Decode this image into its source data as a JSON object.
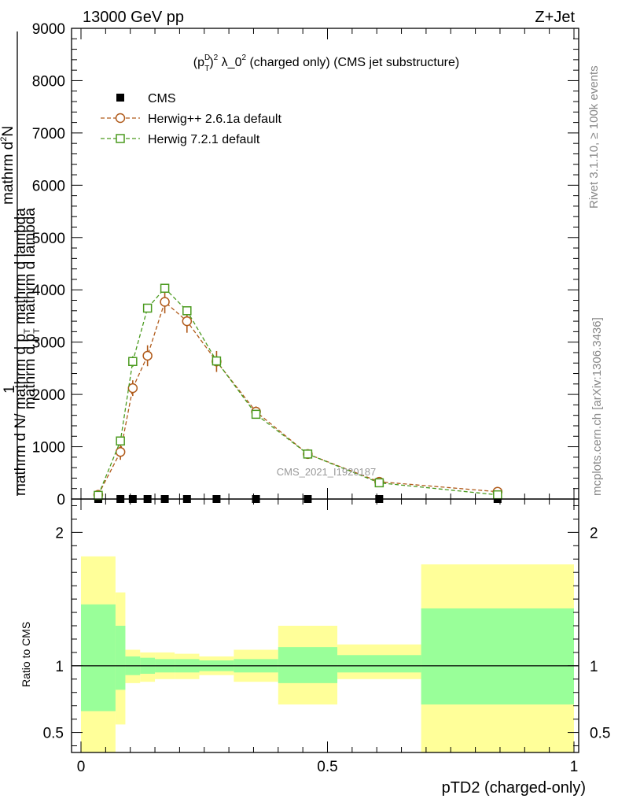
{
  "header": {
    "left": "13000 GeV pp",
    "right": "Z+Jet"
  },
  "side_text": {
    "rivet": "Rivet 3.1.10, ≥ 100k events",
    "mcplots": "mcplots.cern.ch [arXiv:1306.3436]"
  },
  "watermark": "CMS_2021_I1920187",
  "chart_data": [
    {
      "type": "line",
      "title_parts": {
        "base": "(p",
        "sup_D": "D",
        "sub_T": "T",
        "close": ")",
        "sup_2": "2",
        "rest": " λ_0",
        "rest_sup": "2",
        "tail": " (charged only) (CMS jet substructure)"
      },
      "ylabel": {
        "num_a": "1",
        "num_b": "mathrm d N",
        "num_c": "/ mathrm d p",
        "num_sub": "T",
        "num_d": " mathrm d lambda",
        "den_a": "mathrm d",
        "den_sup": "2",
        "den_b": "N",
        "den_c": "mathrm d p",
        "den_sub": "T",
        "den_d": " mathrm d lambda"
      },
      "xlim": [
        0,
        1
      ],
      "ylim": [
        0,
        9000
      ],
      "yticks": [
        0,
        1000,
        2000,
        3000,
        4000,
        5000,
        6000,
        7000,
        8000,
        9000
      ],
      "ytick_labels": [
        "0",
        "1000",
        "2000",
        "3000",
        "4000",
        "5000",
        "6000",
        "7000",
        "8000",
        "9000"
      ],
      "legend": [
        {
          "name": "CMS",
          "marker": "filled-square",
          "color": "#000000"
        },
        {
          "name": "Herwig++ 2.6.1a default",
          "marker": "open-circle",
          "color": "#b05a1a"
        },
        {
          "name": "Herwig 7.2.1 default",
          "marker": "open-square",
          "color": "#4a9a1e"
        }
      ],
      "series": [
        {
          "name": "CMS",
          "x": [
            0.035,
            0.08,
            0.105,
            0.135,
            0.17,
            0.215,
            0.275,
            0.355,
            0.46,
            0.605,
            0.845
          ],
          "y": [
            0,
            0,
            0,
            0,
            0,
            0,
            0,
            0,
            0,
            0,
            0
          ]
        },
        {
          "name": "Herwig++ 2.6.1a default",
          "x": [
            0.035,
            0.08,
            0.105,
            0.135,
            0.17,
            0.215,
            0.275,
            0.355,
            0.46,
            0.605,
            0.845
          ],
          "y": [
            80,
            900,
            2120,
            2740,
            3770,
            3400,
            2630,
            1670,
            860,
            330,
            140
          ],
          "yerr": [
            30,
            150,
            150,
            200,
            220,
            220,
            200,
            100,
            50,
            30,
            20
          ]
        },
        {
          "name": "Herwig 7.2.1 default",
          "x": [
            0.035,
            0.08,
            0.105,
            0.135,
            0.17,
            0.215,
            0.275,
            0.355,
            0.46,
            0.605,
            0.845
          ],
          "y": [
            70,
            1110,
            2630,
            3650,
            4030,
            3600,
            2640,
            1620,
            860,
            310,
            80
          ],
          "yerr": [
            20,
            80,
            100,
            80,
            80,
            80,
            100,
            60,
            40,
            20,
            10
          ]
        }
      ]
    },
    {
      "type": "area",
      "ylabel": "Ratio to CMS",
      "xlabel": "pTD2 (charged-only)",
      "xlim": [
        0,
        1
      ],
      "ylim": [
        0.35,
        2.25
      ],
      "yticks": [
        0.5,
        1,
        2
      ],
      "ytick_labels": [
        "0.5",
        "1",
        "2"
      ],
      "xticks": [
        0,
        0.5,
        1
      ],
      "xtick_labels": [
        "0",
        "0.5",
        "1"
      ],
      "reference_line": 1,
      "bands": [
        {
          "x0": 0.0,
          "x1": 0.07,
          "inner_lo": 0.66,
          "inner_hi": 1.46,
          "outer_lo": 0.35,
          "outer_hi": 1.82
        },
        {
          "x0": 0.07,
          "x1": 0.09,
          "inner_lo": 0.82,
          "inner_hi": 1.3,
          "outer_lo": 0.56,
          "outer_hi": 1.55
        },
        {
          "x0": 0.09,
          "x1": 0.12,
          "inner_lo": 0.93,
          "inner_hi": 1.07,
          "outer_lo": 0.87,
          "outer_hi": 1.12
        },
        {
          "x0": 0.12,
          "x1": 0.15,
          "inner_lo": 0.94,
          "inner_hi": 1.06,
          "outer_lo": 0.88,
          "outer_hi": 1.1
        },
        {
          "x0": 0.15,
          "x1": 0.19,
          "inner_lo": 0.95,
          "inner_hi": 1.05,
          "outer_lo": 0.9,
          "outer_hi": 1.1
        },
        {
          "x0": 0.19,
          "x1": 0.24,
          "inner_lo": 0.95,
          "inner_hi": 1.05,
          "outer_lo": 0.9,
          "outer_hi": 1.09
        },
        {
          "x0": 0.24,
          "x1": 0.31,
          "inner_lo": 0.96,
          "inner_hi": 1.04,
          "outer_lo": 0.93,
          "outer_hi": 1.07
        },
        {
          "x0": 0.31,
          "x1": 0.4,
          "inner_lo": 0.95,
          "inner_hi": 1.05,
          "outer_lo": 0.88,
          "outer_hi": 1.12
        },
        {
          "x0": 0.4,
          "x1": 0.52,
          "inner_lo": 0.87,
          "inner_hi": 1.14,
          "outer_lo": 0.71,
          "outer_hi": 1.3
        },
        {
          "x0": 0.52,
          "x1": 0.69,
          "inner_lo": 0.95,
          "inner_hi": 1.08,
          "outer_lo": 0.9,
          "outer_hi": 1.16
        },
        {
          "x0": 0.69,
          "x1": 1.0,
          "inner_lo": 0.71,
          "inner_hi": 1.43,
          "outer_lo": 0.35,
          "outer_hi": 1.76
        }
      ],
      "colors": {
        "inner": "#99ff99",
        "outer": "#ffff99",
        "herwigpp": "#b05a1a",
        "herwig7": "#4a9a1e"
      }
    }
  ]
}
